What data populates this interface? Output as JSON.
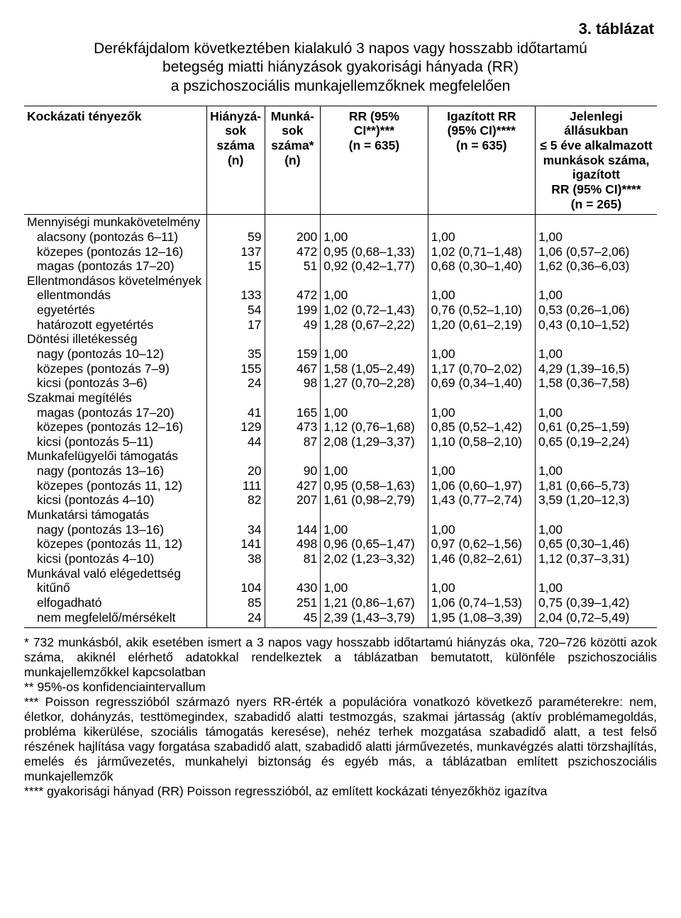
{
  "tableLabel": "3. táblázat",
  "titleLines": [
    "Derékfájdalom következtében kialakuló 3 napos vagy hosszabb időtartamú",
    "betegség miatti hiányzások gyakorisági hányada (RR)",
    "a pszichoszociális munkajellemzőknek megfelelően"
  ],
  "headers": {
    "c1": "Kockázati tényezők",
    "c2": "Hiányzá-\nsok\nszáma\n(n)",
    "c3": "Munká-\nsok\nszáma*\n(n)",
    "c4": "RR (95%\nCI**)***\n(n = 635)",
    "c5": "Igazított RR\n(95% CI)****\n(n = 635)",
    "c6": "Jelenlegi állásukban\n≤ 5 éve alkalmazott\nmunkások száma,\nigazított\nRR (95% CI)****\n(n = 265)"
  },
  "rows": [
    {
      "t": "g",
      "label": "Mennyiségi munkakövetelmény"
    },
    {
      "t": "d",
      "label": "alacsony (pontozás 6–11)",
      "n1": "59",
      "n2": "200",
      "v1": "1,00",
      "v2": "1,00",
      "v3": "1,00"
    },
    {
      "t": "d",
      "label": "közepes (pontozás 12–16)",
      "n1": "137",
      "n2": "472",
      "v1": "0,95 (0,68–1,33)",
      "v2": "1,02 (0,71–1,48)",
      "v3": "1,06 (0,57–2,06)"
    },
    {
      "t": "d",
      "label": "magas (pontozás 17–20)",
      "n1": "15",
      "n2": "51",
      "v1": "0,92 (0,42–1,77)",
      "v2": "0,68 (0,30–1,40)",
      "v3": "1,62 (0,36–6,03)"
    },
    {
      "t": "g",
      "label": "Ellentmondásos követelmények"
    },
    {
      "t": "d",
      "label": "ellentmondás",
      "n1": "133",
      "n2": "472",
      "v1": "1,00",
      "v2": "1,00",
      "v3": "1,00"
    },
    {
      "t": "d",
      "label": "egyetértés",
      "n1": "54",
      "n2": "199",
      "v1": "1,02 (0,72–1,43)",
      "v2": "0,76 (0,52–1,10)",
      "v3": "0,53 (0,26–1,06)"
    },
    {
      "t": "d",
      "label": "határozott egyetértés",
      "n1": "17",
      "n2": "49",
      "v1": "1,28 (0,67–2,22)",
      "v2": "1,20 (0,61–2,19)",
      "v3": "0,43 (0,10–1,52)"
    },
    {
      "t": "g",
      "label": "Döntési illetékesség"
    },
    {
      "t": "d",
      "label": "nagy (pontozás 10–12)",
      "n1": "35",
      "n2": "159",
      "v1": "1,00",
      "v2": "1,00",
      "v3": "1,00"
    },
    {
      "t": "d",
      "label": "közepes (pontozás 7–9)",
      "n1": "155",
      "n2": "467",
      "v1": "1,58 (1,05–2,49)",
      "v2": "1,17 (0,70–2,02)",
      "v3": "4,29 (1,39–16,5)"
    },
    {
      "t": "d",
      "label": "kicsi (pontozás 3–6)",
      "n1": "24",
      "n2": "98",
      "v1": "1,27 (0,70–2,28)",
      "v2": "0,69 (0,34–1,40)",
      "v3": "1,58 (0,36–7,58)"
    },
    {
      "t": "g",
      "label": "Szakmai megítélés"
    },
    {
      "t": "d",
      "label": "magas (pontozás 17–20)",
      "n1": "41",
      "n2": "165",
      "v1": "1,00",
      "v2": "1,00",
      "v3": "1,00"
    },
    {
      "t": "d",
      "label": "közepes (pontozás 12–16)",
      "n1": "129",
      "n2": "473",
      "v1": "1,12 (0,76–1,68)",
      "v2": "0,85 (0,52–1,42)",
      "v3": "0,61 (0,25–1,59)"
    },
    {
      "t": "d",
      "label": "kicsi (pontozás 5–11)",
      "n1": "44",
      "n2": "87",
      "v1": "2,08 (1,29–3,37)",
      "v2": "1,10 (0,58–2,10)",
      "v3": "0,65 (0,19–2,24)"
    },
    {
      "t": "g",
      "label": "Munkafelügyelői támogatás"
    },
    {
      "t": "d",
      "label": "nagy (pontozás 13–16)",
      "n1": "20",
      "n2": "90",
      "v1": "1,00",
      "v2": "1,00",
      "v3": "1,00"
    },
    {
      "t": "d",
      "label": "közepes (pontozás 11, 12)",
      "n1": "111",
      "n2": "427",
      "v1": "0,95 (0,58–1,63)",
      "v2": "1,06 (0,60–1,97)",
      "v3": "1,81 (0,66–5,73)"
    },
    {
      "t": "d",
      "label": "kicsi (pontozás 4–10)",
      "n1": "82",
      "n2": "207",
      "v1": "1,61 (0,98–2,79)",
      "v2": "1,43 (0,77–2,74)",
      "v3": "3,59 (1,20–12,3)"
    },
    {
      "t": "g",
      "label": "Munkatársi támogatás"
    },
    {
      "t": "d",
      "label": "nagy (pontozás 13–16)",
      "n1": "34",
      "n2": "144",
      "v1": "1,00",
      "v2": "1,00",
      "v3": "1,00"
    },
    {
      "t": "d",
      "label": "közepes (pontozás 11, 12)",
      "n1": "141",
      "n2": "498",
      "v1": "0,96 (0,65–1,47)",
      "v2": "0,97 (0,62–1,56)",
      "v3": "0,65 (0,30–1,46)"
    },
    {
      "t": "d",
      "label": "kicsi (pontozás 4–10)",
      "n1": "38",
      "n2": "81",
      "v1": "2,02 (1,23–3,32)",
      "v2": "1,46 (0,82–2,61)",
      "v3": "1,12 (0,37–3,31)"
    },
    {
      "t": "g",
      "label": "Munkával való elégedettség"
    },
    {
      "t": "d",
      "label": "kitűnő",
      "n1": "104",
      "n2": "430",
      "v1": "1,00",
      "v2": "1,00",
      "v3": "1,00"
    },
    {
      "t": "d",
      "label": "elfogadható",
      "n1": "85",
      "n2": "251",
      "v1": "1,21 (0,86–1,67)",
      "v2": "1,06 (0,74–1,53)",
      "v3": "0,75 (0,39–1,42)"
    },
    {
      "t": "d",
      "label": "nem megfelelő/mérsékelt",
      "n1": "24",
      "n2": "45",
      "v1": "2,39 (1,43–3,79)",
      "v2": "1,95 (1,08–3,39)",
      "v3": "2,04 (0,72–5,49)"
    }
  ],
  "footnotes": [
    "* 732 munkásból, akik esetében ismert a 3 napos vagy hosszabb időtartamú hiányzás oka, 720–726 közötti azok száma, akiknél elérhető adatokkal rendelkeztek a táblázatban bemutatott, különféle pszichoszociális munkajellemzőkkel kapcsolatban",
    "** 95%-os konfidenciaintervallum",
    "*** Poisson regresszióból származó nyers RR-érték a populációra vonatkozó következő paraméterekre: nem, életkor, dohányzás, testtömegindex, szabadidő alatti testmozgás, szakmai jártasság (aktív problémamegoldás, probléma kikerülése, szociális támogatás keresése), nehéz terhek mozgatása szabadidő alatt, a test felső részének hajlítása vagy forgatása szabadidő alatt, szabadidő alatti járművezetés, munkavégzés alatti törzshajlítás, emelés és járművezetés, munkahelyi biztonság és egyéb más, a táblázatban említett pszichoszociális munkajellemzők",
    "**** gyakorisági hányad (RR) Poisson regresszióból, az említett kockázati tényezőkhöz igazítva"
  ]
}
